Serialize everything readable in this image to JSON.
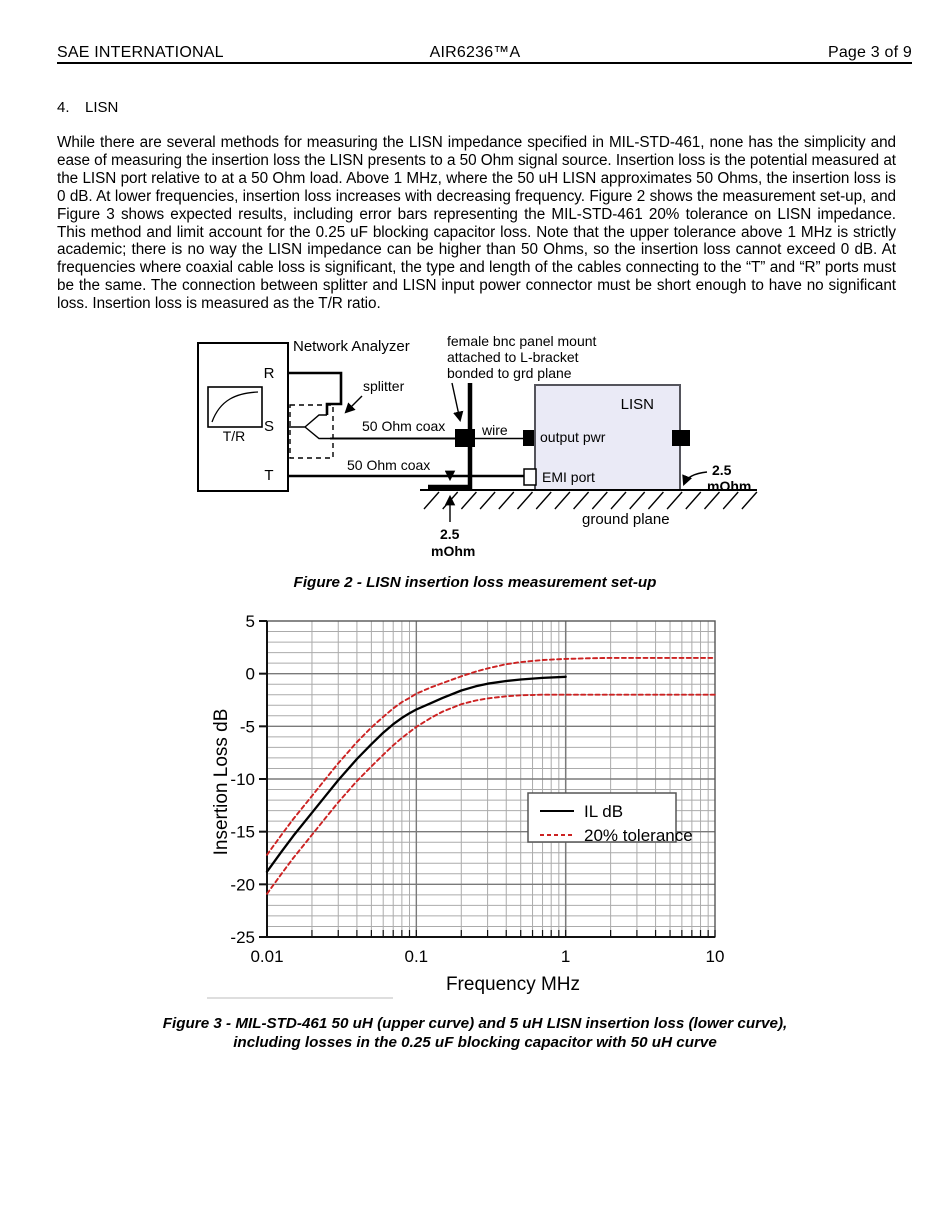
{
  "header": {
    "left": "SAE INTERNATIONAL",
    "center": "AIR6236™A",
    "right": "Page 3 of 9"
  },
  "section": {
    "number": "4.",
    "title": "LISN"
  },
  "paragraph": "While there are several methods for measuring the LISN impedance specified in MIL-STD-461, none has the simplicity and ease of measuring the insertion loss the LISN presents to a 50 Ohm signal source. Insertion loss is the potential measured at the LISN port relative to at a 50 Ohm load. Above 1 MHz, where the 50 uH LISN approximates 50 Ohms, the insertion loss is 0 dB. At lower frequencies, insertion loss increases with decreasing frequency. Figure 2 shows the measurement set-up, and Figure 3 shows expected results, including error bars representing the MIL-STD-461 20% tolerance on LISN impedance. This method and limit account for the 0.25 uF blocking capacitor loss. Note that the upper tolerance above 1 MHz is strictly academic; there is no way the LISN impedance can be higher than 50 Ohms, so the insertion loss cannot exceed 0 dB. At frequencies where coaxial cable loss is significant, the type and length of the cables connecting to the “T” and “R” ports must be the same. The connection between splitter and LISN input power connector must be short enough to have no significant loss. Insertion loss is measured as the T/R ratio.",
  "figure2": {
    "caption": "Figure 2 - LISN insertion loss measurement set-up",
    "labels": {
      "network_analyzer": "Network Analyzer",
      "tr_meter": "T/R",
      "port_r": "R",
      "port_s": "S",
      "port_t": "T",
      "splitter": "splitter",
      "coax_upper": "50 Ohm coax",
      "coax_lower": "50 Ohm coax",
      "bnc_note_line1": "female bnc panel mount",
      "bnc_note_line2": "attached to L-bracket",
      "bnc_note_line3": "bonded to grd plane",
      "wire": "wire",
      "lisn": "LISN",
      "output_pwr": "output pwr",
      "emi_port": "EMI port",
      "ground_plane": "ground plane",
      "mohm_bottom_value": "2.5",
      "mohm_bottom_unit": "mOhm",
      "mohm_right_value": "2.5",
      "mohm_right_unit": "mOhm"
    }
  },
  "figure3": {
    "caption_line1": "Figure 3 - MIL-STD-461 50 uH (upper curve) and 5 uH LISN insertion loss (lower curve),",
    "caption_line2": "including losses in the 0.25 uF blocking capacitor with 50 uH curve"
  },
  "chart_data": {
    "type": "line",
    "xlabel": "Frequency MHz",
    "ylabel": "Insertion Loss dB",
    "x_scale": "log",
    "xlim": [
      0.01,
      10
    ],
    "ylim": [
      -25,
      5
    ],
    "grid": "both",
    "y_major_ticks": [
      5,
      0,
      -5,
      -10,
      -15,
      -20,
      -25
    ],
    "x_ticks": [
      0.01,
      0.1,
      1,
      10
    ],
    "x_tick_labels": [
      "0.01",
      "0.1",
      "1",
      "10"
    ],
    "legend_position": "center-right",
    "legend": [
      {
        "label": "IL dB",
        "color": "#000000",
        "style": "solid"
      },
      {
        "label": "20% tolerance",
        "color": "#cc2222",
        "style": "dashed"
      }
    ],
    "series": [
      {
        "name": "IL dB",
        "color": "#000000",
        "style": "solid",
        "points": [
          [
            0.01,
            -18.8
          ],
          [
            0.0125,
            -16.9
          ],
          [
            0.015,
            -15.4
          ],
          [
            0.02,
            -13.2
          ],
          [
            0.025,
            -11.5
          ],
          [
            0.03,
            -10.1
          ],
          [
            0.04,
            -8.1
          ],
          [
            0.05,
            -6.7
          ],
          [
            0.06,
            -5.6
          ],
          [
            0.07,
            -4.8
          ],
          [
            0.08,
            -4.2
          ],
          [
            0.09,
            -3.75
          ],
          [
            0.1,
            -3.4
          ],
          [
            0.125,
            -2.8
          ],
          [
            0.15,
            -2.3
          ],
          [
            0.2,
            -1.6
          ],
          [
            0.25,
            -1.2
          ],
          [
            0.3,
            -0.95
          ],
          [
            0.4,
            -0.7
          ],
          [
            0.5,
            -0.55
          ],
          [
            0.7,
            -0.4
          ],
          [
            1,
            -0.3
          ]
        ]
      },
      {
        "name": "20% tolerance upper",
        "color": "#cc2222",
        "style": "dashed",
        "points": [
          [
            0.01,
            -17.2
          ],
          [
            0.0125,
            -15.3
          ],
          [
            0.015,
            -13.8
          ],
          [
            0.02,
            -11.6
          ],
          [
            0.025,
            -9.9
          ],
          [
            0.03,
            -8.5
          ],
          [
            0.04,
            -6.5
          ],
          [
            0.05,
            -5.1
          ],
          [
            0.06,
            -4.1
          ],
          [
            0.07,
            -3.3
          ],
          [
            0.08,
            -2.7
          ],
          [
            0.09,
            -2.3
          ],
          [
            0.1,
            -1.9
          ],
          [
            0.125,
            -1.3
          ],
          [
            0.15,
            -0.9
          ],
          [
            0.2,
            -0.25
          ],
          [
            0.25,
            0.2
          ],
          [
            0.3,
            0.5
          ],
          [
            0.4,
            0.9
          ],
          [
            0.5,
            1.1
          ],
          [
            0.7,
            1.3
          ],
          [
            1,
            1.4
          ],
          [
            1.5,
            1.47
          ],
          [
            2,
            1.5
          ],
          [
            5,
            1.5
          ],
          [
            10,
            1.5
          ]
        ]
      },
      {
        "name": "20% tolerance lower",
        "color": "#cc2222",
        "style": "dashed",
        "points": [
          [
            0.01,
            -20.9
          ],
          [
            0.0125,
            -19.0
          ],
          [
            0.015,
            -17.5
          ],
          [
            0.02,
            -15.3
          ],
          [
            0.025,
            -13.6
          ],
          [
            0.03,
            -12.2
          ],
          [
            0.04,
            -10.2
          ],
          [
            0.05,
            -8.8
          ],
          [
            0.06,
            -7.7
          ],
          [
            0.07,
            -6.8
          ],
          [
            0.08,
            -6.1
          ],
          [
            0.09,
            -5.55
          ],
          [
            0.1,
            -5.05
          ],
          [
            0.125,
            -4.2
          ],
          [
            0.15,
            -3.6
          ],
          [
            0.2,
            -2.9
          ],
          [
            0.25,
            -2.55
          ],
          [
            0.3,
            -2.35
          ],
          [
            0.4,
            -2.15
          ],
          [
            0.5,
            -2.05
          ],
          [
            0.7,
            -2.0
          ],
          [
            1,
            -2.0
          ],
          [
            2,
            -2.0
          ],
          [
            5,
            -2.0
          ],
          [
            10,
            -2.0
          ]
        ]
      }
    ]
  },
  "colors": {
    "accent_red": "#cc2222",
    "lisn_fill": "#eaeaf6",
    "grid_minor": "#ababab",
    "grid_major": "#7a7a7a"
  }
}
